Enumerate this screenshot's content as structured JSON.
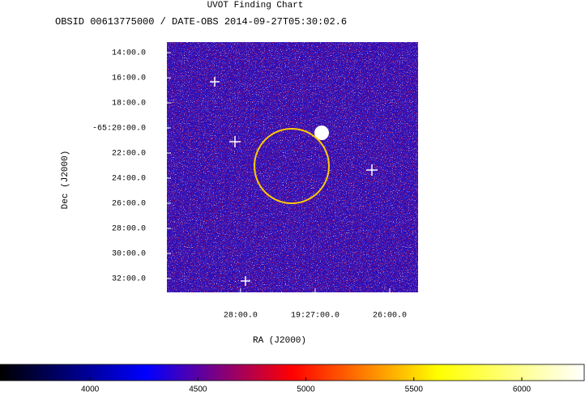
{
  "chart_data": {
    "type": "image",
    "title": "UVOT Finding Chart",
    "subtitle": "OBSID 00613775000 / DATE-OBS 2014-09-27T05:30:02.6",
    "xlabel": "RA (J2000)",
    "ylabel": "Dec (J2000)",
    "xlim": [
      292.247,
      291.405
    ],
    "xticks": [
      {
        "value": 292.0,
        "label": "28:00.0"
      },
      {
        "value": 291.75,
        "label": "19:27:00.0"
      },
      {
        "value": 291.5,
        "label": "26:00.0"
      }
    ],
    "ylim": [
      -65.5517,
      -65.2193
    ],
    "yticks": [
      {
        "value": -65.2333,
        "label": "14:00.0"
      },
      {
        "value": -65.2667,
        "label": "16:00.0"
      },
      {
        "value": -65.3,
        "label": "18:00.0"
      },
      {
        "value": -65.3333,
        "label": "-65:20:00.0"
      },
      {
        "value": -65.3667,
        "label": "22:00.0"
      },
      {
        "value": -65.4,
        "label": "24:00.0"
      },
      {
        "value": -65.4333,
        "label": "26:00.0"
      },
      {
        "value": -65.4667,
        "label": "28:00.0"
      },
      {
        "value": -65.5,
        "label": "30:00.0"
      },
      {
        "value": -65.5333,
        "label": "32:00.0"
      }
    ],
    "clim": [
      3583,
      6289
    ],
    "cticks": [
      4000,
      4500,
      5000,
      5500,
      6000
    ],
    "colormap": [
      "#000000",
      "#0000ff",
      "#ff0000",
      "#ffff00",
      "#ffffff"
    ]
  }
}
